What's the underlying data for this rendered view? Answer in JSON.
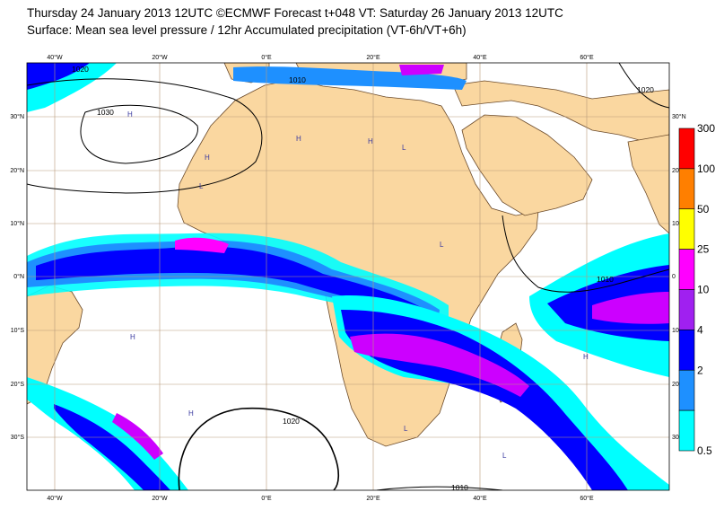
{
  "header": {
    "line1": "Thursday 24 January 2013 12UTC ©ECMWF Forecast t+048 VT: Saturday 26 January 2013 12UTC",
    "line2": "Surface: Mean sea level pressure / 12hr Accumulated precipitation (VT-6h/VT+6h)"
  },
  "map": {
    "lon_ticks": [
      "40°W",
      "20°W",
      "0°E",
      "20°E",
      "40°E",
      "60°E"
    ],
    "lat_ticks_left": [
      "30°N",
      "20°N",
      "10°N",
      "0°N",
      "10°S",
      "20°S",
      "30°S"
    ],
    "lat_ticks_right": [
      "30°N",
      "20",
      "10",
      "0",
      "10",
      "20",
      "30"
    ],
    "isobars": [
      {
        "value": "1020",
        "label": "1020"
      },
      {
        "value": "1030",
        "label": "1030"
      },
      {
        "value": "1010",
        "label": "1010"
      }
    ],
    "pressure_centers": [
      "H",
      "L"
    ],
    "colors": {
      "land": "#fad7a0",
      "ocean": "#ffffff",
      "grid": "#b89a7a"
    }
  },
  "legend": {
    "units_note": "",
    "levels": [
      "300",
      "100",
      "50",
      "25",
      "10",
      "4",
      "2",
      "0.5"
    ],
    "colors": [
      "#ff0000",
      "#ff7f00",
      "#ffff00",
      "#ff00ff",
      "#a020f0",
      "#0000ff",
      "#1e90ff",
      "#00ffff"
    ]
  }
}
